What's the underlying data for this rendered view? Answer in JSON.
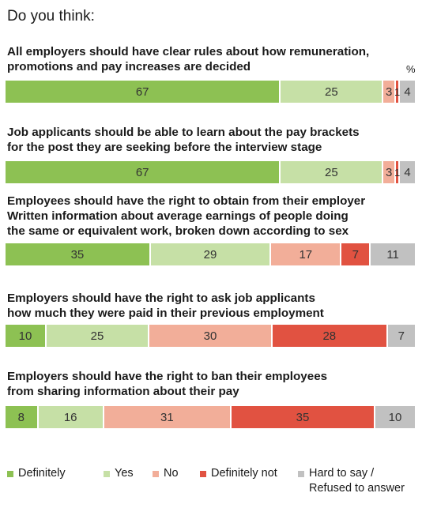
{
  "title": "Do you think:",
  "unit": "%",
  "colors": [
    "#8dc153",
    "#c6e0a6",
    "#f2ae99",
    "#e15241",
    "#c1c1c1"
  ],
  "legend": [
    "Definitely",
    "Yes",
    "No",
    "Definitely not",
    "Hard to say /\nRefused to answer"
  ],
  "chart_data": {
    "type": "bar",
    "orientation": "horizontal-stacked-100",
    "title": "Do you think:",
    "unit": "%",
    "categories": [
      "All employers should have clear rules about how remuneration,\npromotions and pay increases are decided",
      "Job applicants should be able to learn about the pay brackets\nfor the post they are seeking before the interview stage",
      "Employees should have the right to obtain from their employer\nWritten information about average earnings of people doing\nthe same or equivalent work, broken down according to sex",
      "Employers should have the right to ask job applicants\nhow much they were paid in their previous employment",
      "Employers should have the right to ban their employees\nfrom sharing information about their pay"
    ],
    "series": [
      {
        "name": "Definitely",
        "values": [
          67,
          67,
          35,
          10,
          8
        ]
      },
      {
        "name": "Yes",
        "values": [
          25,
          25,
          29,
          25,
          16
        ]
      },
      {
        "name": "No",
        "values": [
          3,
          3,
          17,
          30,
          31
        ]
      },
      {
        "name": "Definitely not",
        "values": [
          1,
          1,
          7,
          28,
          35
        ]
      },
      {
        "name": "Hard to say /\nRefused to answer",
        "values": [
          4,
          4,
          11,
          7,
          10
        ]
      }
    ],
    "legend_position": "bottom"
  }
}
